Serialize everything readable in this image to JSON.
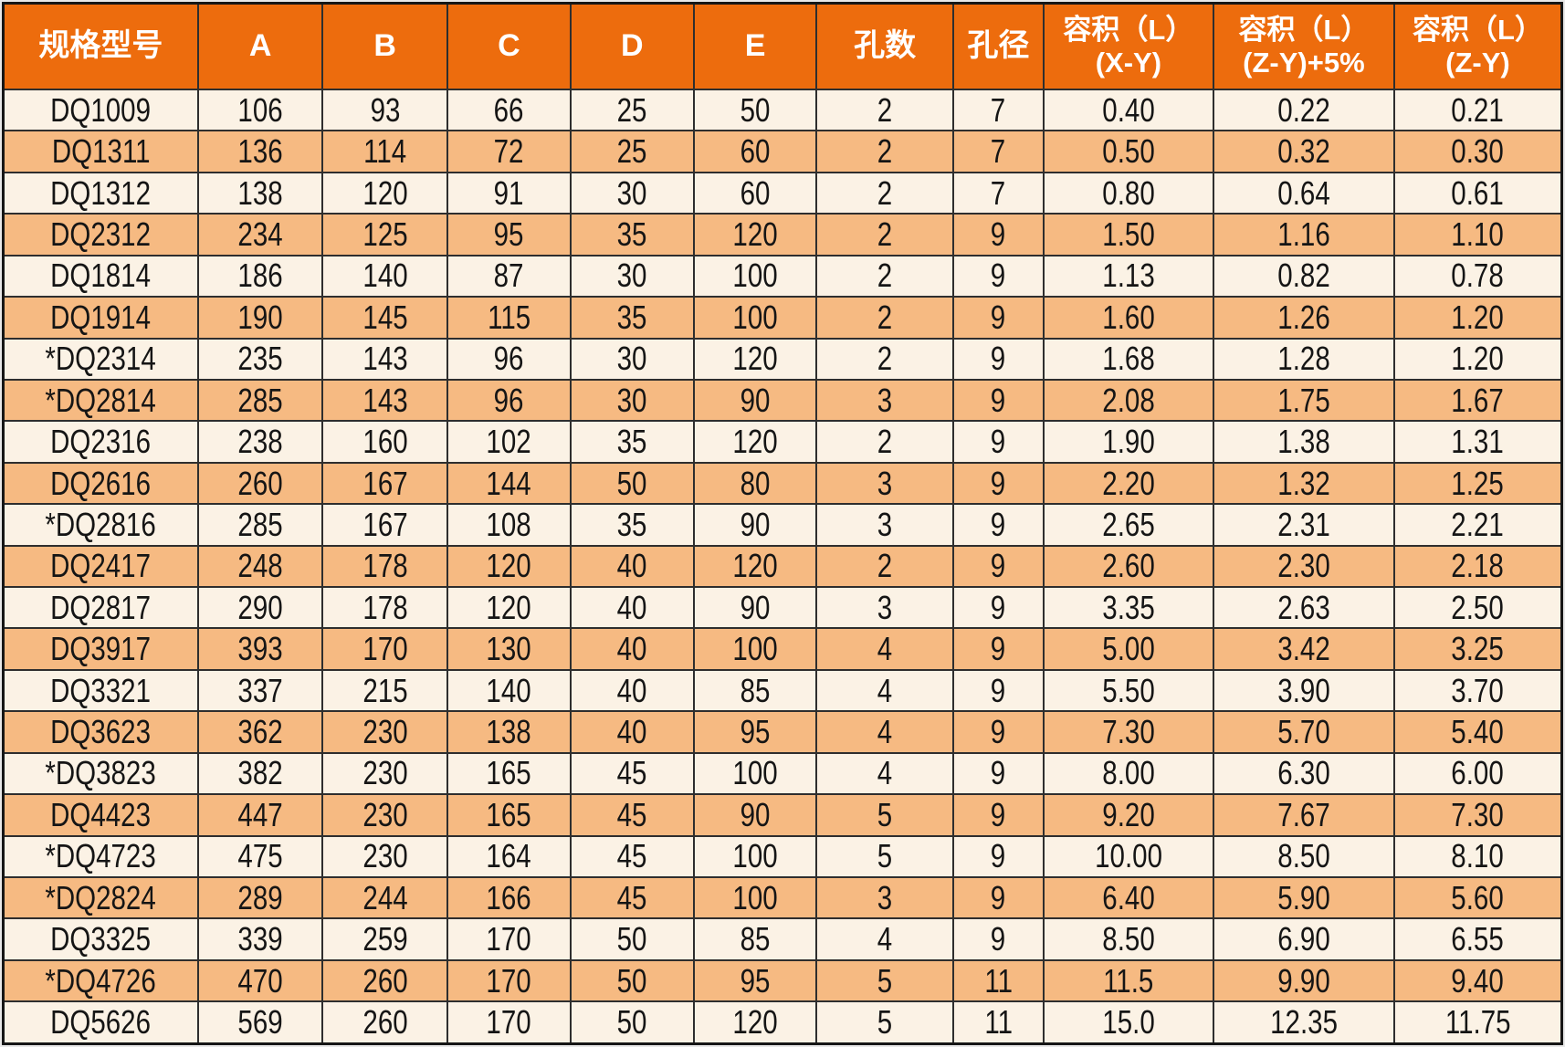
{
  "colors": {
    "header_bg": "#ed6c0d",
    "header_text": "#ffffff",
    "row_cream": "#fbf2e5",
    "row_orange": "#f6ba82",
    "grid_border": "#2e2e2e",
    "outer_border": "#161616",
    "cell_text": "#151515"
  },
  "chart_data": {
    "type": "table",
    "title": "",
    "columns": [
      {
        "key": "model",
        "label": "规格型号",
        "sublabel": "",
        "width": "12.5%"
      },
      {
        "key": "a",
        "label": "A",
        "sublabel": "",
        "width": "8.0%"
      },
      {
        "key": "b",
        "label": "B",
        "sublabel": "",
        "width": "8.0%"
      },
      {
        "key": "c",
        "label": "C",
        "sublabel": "",
        "width": "7.9%"
      },
      {
        "key": "d",
        "label": "D",
        "sublabel": "",
        "width": "7.9%"
      },
      {
        "key": "e",
        "label": "E",
        "sublabel": "",
        "width": "7.9%"
      },
      {
        "key": "holes",
        "label": "孔数",
        "sublabel": "",
        "width": "8.75%"
      },
      {
        "key": "hole_d",
        "label": "孔径",
        "sublabel": "",
        "width": "5.8%"
      },
      {
        "key": "vol_xy",
        "label": "容积（L）",
        "sublabel": "(X-Y)",
        "width": "10.9%"
      },
      {
        "key": "vol_zy5",
        "label": "容积（L）",
        "sublabel": "(Z-Y)+5%",
        "width": "11.6%"
      },
      {
        "key": "vol_zy",
        "label": "容积（L）",
        "sublabel": "(Z-Y)",
        "width": "10.75%"
      }
    ],
    "rows": [
      [
        "DQ1009",
        "106",
        "93",
        "66",
        "25",
        "50",
        "2",
        "7",
        "0.40",
        "0.22",
        "0.21"
      ],
      [
        "DQ1311",
        "136",
        "114",
        "72",
        "25",
        "60",
        "2",
        "7",
        "0.50",
        "0.32",
        "0.30"
      ],
      [
        "DQ1312",
        "138",
        "120",
        "91",
        "30",
        "60",
        "2",
        "7",
        "0.80",
        "0.64",
        "0.61"
      ],
      [
        "DQ2312",
        "234",
        "125",
        "95",
        "35",
        "120",
        "2",
        "9",
        "1.50",
        "1.16",
        "1.10"
      ],
      [
        "DQ1814",
        "186",
        "140",
        "87",
        "30",
        "100",
        "2",
        "9",
        "1.13",
        "0.82",
        "0.78"
      ],
      [
        "DQ1914",
        "190",
        "145",
        "115",
        "35",
        "100",
        "2",
        "9",
        "1.60",
        "1.26",
        "1.20"
      ],
      [
        "*DQ2314",
        "235",
        "143",
        "96",
        "30",
        "120",
        "2",
        "9",
        "1.68",
        "1.28",
        "1.20"
      ],
      [
        "*DQ2814",
        "285",
        "143",
        "96",
        "30",
        "90",
        "3",
        "9",
        "2.08",
        "1.75",
        "1.67"
      ],
      [
        "DQ2316",
        "238",
        "160",
        "102",
        "35",
        "120",
        "2",
        "9",
        "1.90",
        "1.38",
        "1.31"
      ],
      [
        "DQ2616",
        "260",
        "167",
        "144",
        "50",
        "80",
        "3",
        "9",
        "2.20",
        "1.32",
        "1.25"
      ],
      [
        "*DQ2816",
        "285",
        "167",
        "108",
        "35",
        "90",
        "3",
        "9",
        "2.65",
        "2.31",
        "2.21"
      ],
      [
        "DQ2417",
        "248",
        "178",
        "120",
        "40",
        "120",
        "2",
        "9",
        "2.60",
        "2.30",
        "2.18"
      ],
      [
        "DQ2817",
        "290",
        "178",
        "120",
        "40",
        "90",
        "3",
        "9",
        "3.35",
        "2.63",
        "2.50"
      ],
      [
        "DQ3917",
        "393",
        "170",
        "130",
        "40",
        "100",
        "4",
        "9",
        "5.00",
        "3.42",
        "3.25"
      ],
      [
        "DQ3321",
        "337",
        "215",
        "140",
        "40",
        "85",
        "4",
        "9",
        "5.50",
        "3.90",
        "3.70"
      ],
      [
        "DQ3623",
        "362",
        "230",
        "138",
        "40",
        "95",
        "4",
        "9",
        "7.30",
        "5.70",
        "5.40"
      ],
      [
        "*DQ3823",
        "382",
        "230",
        "165",
        "45",
        "100",
        "4",
        "9",
        "8.00",
        "6.30",
        "6.00"
      ],
      [
        "DQ4423",
        "447",
        "230",
        "165",
        "45",
        "90",
        "5",
        "9",
        "9.20",
        "7.67",
        "7.30"
      ],
      [
        "*DQ4723",
        "475",
        "230",
        "164",
        "45",
        "100",
        "5",
        "9",
        "10.00",
        "8.50",
        "8.10"
      ],
      [
        "*DQ2824",
        "289",
        "244",
        "166",
        "45",
        "100",
        "3",
        "9",
        "6.40",
        "5.90",
        "5.60"
      ],
      [
        "DQ3325",
        "339",
        "259",
        "170",
        "50",
        "85",
        "4",
        "9",
        "8.50",
        "6.90",
        "6.55"
      ],
      [
        "*DQ4726",
        "470",
        "260",
        "170",
        "50",
        "95",
        "5",
        "11",
        "11.5",
        "9.90",
        "9.40"
      ],
      [
        "DQ5626",
        "569",
        "260",
        "170",
        "50",
        "120",
        "5",
        "11",
        "15.0",
        "12.35",
        "11.75"
      ]
    ],
    "layout": {
      "row_striping": "alternating cream/orange starting cream",
      "header_rows": 1,
      "grid": true
    }
  }
}
